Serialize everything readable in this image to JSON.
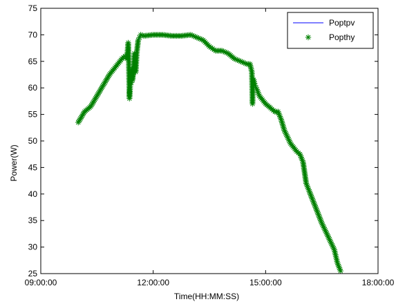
{
  "chart_data": {
    "type": "line",
    "xlabel": "Time(HH:MM:SS)",
    "ylabel": "Power(W)",
    "xlim": [
      "09:00:00",
      "18:00:00"
    ],
    "ylim": [
      25,
      75
    ],
    "x_ticks": [
      "09:00:00",
      "12:00:00",
      "15:00:00",
      "18:00:00"
    ],
    "y_ticks": [
      25,
      30,
      35,
      40,
      45,
      50,
      55,
      60,
      65,
      70,
      75
    ],
    "grid": false,
    "legend": "top-right",
    "colors": {
      "Poptpv": "#0000ff",
      "Popthy": "#008000"
    },
    "series": [
      {
        "name": "Poptpv",
        "style": "line",
        "x": [
          "10:00:00",
          "10:05:00",
          "10:10:00",
          "10:20:00",
          "10:30:00",
          "10:40:00",
          "10:50:00",
          "11:00:00",
          "11:10:00",
          "11:15:00",
          "11:18:00",
          "11:20:00",
          "11:21:00",
          "11:22:00",
          "11:23:00",
          "11:24:00",
          "11:25:00",
          "11:26:00",
          "11:27:00",
          "11:29:00",
          "11:30:00",
          "11:32:00",
          "11:34:00",
          "11:36:00",
          "11:38:00",
          "11:40:00",
          "11:45:00",
          "12:00:00",
          "12:15:00",
          "12:30:00",
          "12:45:00",
          "13:00:00",
          "13:10:00",
          "13:20:00",
          "13:30:00",
          "13:40:00",
          "13:50:00",
          "14:00:00",
          "14:10:00",
          "14:20:00",
          "14:30:00",
          "14:35:00",
          "14:38:00",
          "14:39:00",
          "14:40:00",
          "14:41:00",
          "14:43:00",
          "14:45:00",
          "14:50:00",
          "15:00:00",
          "15:10:00",
          "15:15:00",
          "15:20:00",
          "15:25:00",
          "15:30:00",
          "15:40:00",
          "15:50:00",
          "15:55:00",
          "16:00:00",
          "16:05:00",
          "16:10:00",
          "16:20:00",
          "16:30:00",
          "16:40:00",
          "16:50:00",
          "16:55:00",
          "17:00:00"
        ],
        "values": [
          53.5,
          54.5,
          55.5,
          56.5,
          58.5,
          60.5,
          62.5,
          64.0,
          65.5,
          66.0,
          65.5,
          68.5,
          65.0,
          58.0,
          60.0,
          62.0,
          61.0,
          63.5,
          61.5,
          65.0,
          66.5,
          63.0,
          67.0,
          69.0,
          69.5,
          70.0,
          69.8,
          70.0,
          70.0,
          69.8,
          69.8,
          70.0,
          69.5,
          69.0,
          67.8,
          67.0,
          67.0,
          66.5,
          65.5,
          65.0,
          64.5,
          64.5,
          63.0,
          57.0,
          61.5,
          61.5,
          60.5,
          60.0,
          58.5,
          57.0,
          56.0,
          55.5,
          55.5,
          54.0,
          52.0,
          49.5,
          48.0,
          47.5,
          46.0,
          42.0,
          40.5,
          37.5,
          34.5,
          32.0,
          29.5,
          27.0,
          25.5
        ]
      },
      {
        "name": "Popthy",
        "style": "marker",
        "marker": "asterisk",
        "x": [
          "10:00:00",
          "10:05:00",
          "10:10:00",
          "10:20:00",
          "10:30:00",
          "10:40:00",
          "10:50:00",
          "11:00:00",
          "11:10:00",
          "11:15:00",
          "11:18:00",
          "11:20:00",
          "11:21:00",
          "11:22:00",
          "11:23:00",
          "11:24:00",
          "11:25:00",
          "11:26:00",
          "11:27:00",
          "11:29:00",
          "11:30:00",
          "11:32:00",
          "11:34:00",
          "11:36:00",
          "11:38:00",
          "11:40:00",
          "11:45:00",
          "12:00:00",
          "12:15:00",
          "12:30:00",
          "12:45:00",
          "13:00:00",
          "13:10:00",
          "13:20:00",
          "13:30:00",
          "13:40:00",
          "13:50:00",
          "14:00:00",
          "14:10:00",
          "14:20:00",
          "14:30:00",
          "14:35:00",
          "14:38:00",
          "14:39:00",
          "14:40:00",
          "14:41:00",
          "14:43:00",
          "14:45:00",
          "14:50:00",
          "15:00:00",
          "15:10:00",
          "15:15:00",
          "15:20:00",
          "15:25:00",
          "15:30:00",
          "15:40:00",
          "15:50:00",
          "15:55:00",
          "16:00:00",
          "16:05:00",
          "16:10:00",
          "16:20:00",
          "16:30:00",
          "16:40:00",
          "16:50:00",
          "16:55:00",
          "17:00:00"
        ],
        "values": [
          53.5,
          54.5,
          55.5,
          56.5,
          58.5,
          60.5,
          62.5,
          64.0,
          65.5,
          66.0,
          65.5,
          68.5,
          65.0,
          58.0,
          60.0,
          62.0,
          61.0,
          63.5,
          61.5,
          65.0,
          66.5,
          63.0,
          67.0,
          69.0,
          69.5,
          70.0,
          69.8,
          70.0,
          70.0,
          69.8,
          69.8,
          70.0,
          69.5,
          69.0,
          67.8,
          67.0,
          67.0,
          66.5,
          65.5,
          65.0,
          64.5,
          64.5,
          63.0,
          57.0,
          61.5,
          61.5,
          60.5,
          60.0,
          58.5,
          57.0,
          56.0,
          55.5,
          55.5,
          54.0,
          52.0,
          49.5,
          48.0,
          47.5,
          46.0,
          42.0,
          40.5,
          37.5,
          34.5,
          32.0,
          29.5,
          27.0,
          25.5
        ]
      }
    ]
  }
}
